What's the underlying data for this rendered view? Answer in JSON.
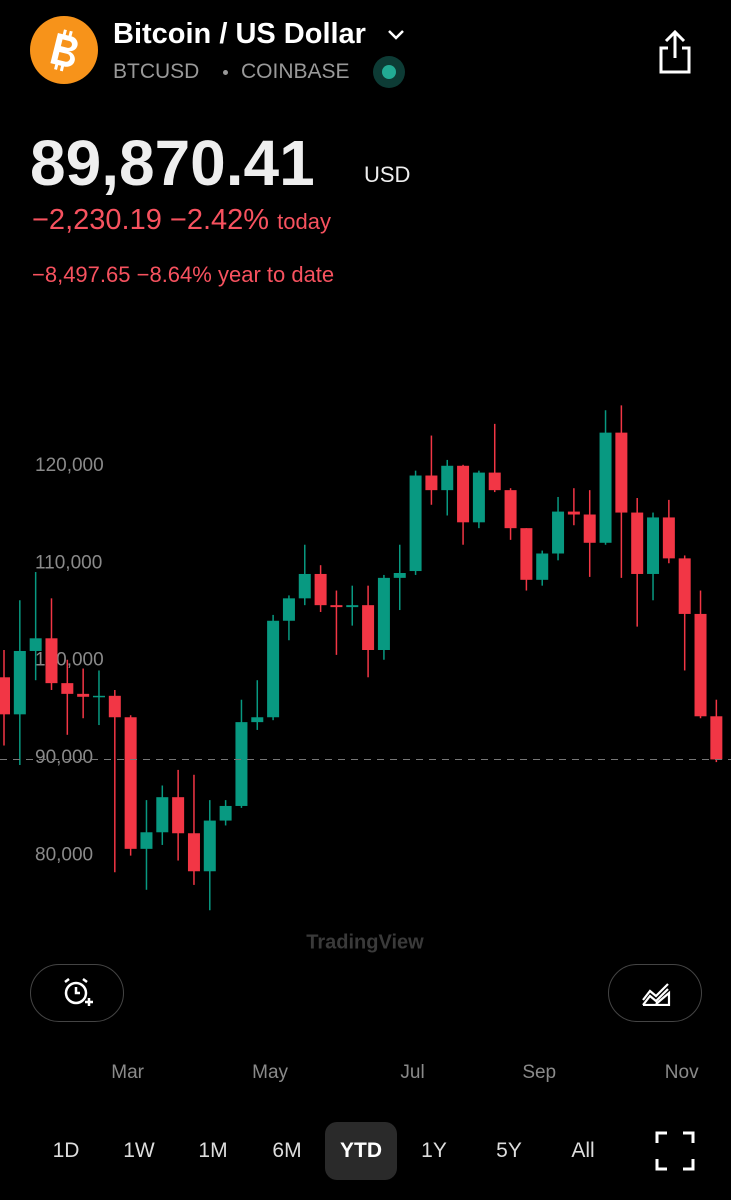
{
  "header": {
    "title": "Bitcoin / US Dollar",
    "symbol": "BTCUSD",
    "exchange": "COINBASE"
  },
  "price": {
    "value": "89,870.41",
    "currency": "USD",
    "today": {
      "change": "−2,230.19",
      "percent": "−2.42%",
      "label": "today"
    },
    "ytd": {
      "change": "−8,497.65",
      "percent": "−8.64%",
      "label": "year to date"
    }
  },
  "chart_data": {
    "type": "candlestick",
    "watermark": "TradingView",
    "categories": [
      null,
      null,
      null,
      null,
      null,
      null,
      null,
      null,
      "Mar",
      null,
      null,
      null,
      null,
      null,
      null,
      null,
      null,
      "May",
      null,
      null,
      null,
      null,
      null,
      null,
      null,
      null,
      "Jul",
      null,
      null,
      null,
      null,
      null,
      null,
      null,
      "Sep",
      null,
      null,
      null,
      null,
      null,
      null,
      null,
      null,
      "Nov",
      null,
      null
    ],
    "open": [
      98300,
      94500,
      101000,
      102300,
      97700,
      96600,
      96300,
      96400,
      94200,
      80700,
      82400,
      86000,
      82300,
      78400,
      83600,
      85100,
      93700,
      94200,
      104100,
      106400,
      108900,
      105700,
      105500,
      105700,
      101100,
      108500,
      109200,
      119000,
      117500,
      120000,
      114200,
      119300,
      117500,
      113600,
      108300,
      111000,
      115300,
      115000,
      112100,
      123400,
      115200,
      108900,
      114700,
      110500,
      104800,
      94300
    ],
    "high": [
      101100,
      106200,
      109100,
      106400,
      100100,
      99200,
      99000,
      97000,
      94400,
      85700,
      87200,
      88800,
      88300,
      85700,
      85700,
      96000,
      98000,
      104700,
      106700,
      111900,
      109800,
      107200,
      107700,
      107700,
      108800,
      111900,
      119500,
      123100,
      120600,
      120100,
      119500,
      124300,
      117700,
      113600,
      111300,
      116800,
      117700,
      117500,
      125700,
      126200,
      116700,
      115200,
      116500,
      110800,
      107200,
      96000
    ],
    "low": [
      91300,
      89300,
      98000,
      97000,
      92400,
      94100,
      93400,
      78300,
      80000,
      76500,
      81100,
      79500,
      77000,
      74400,
      83100,
      84900,
      92900,
      93900,
      102100,
      105700,
      105000,
      100600,
      103600,
      98300,
      100100,
      105200,
      108800,
      116000,
      114900,
      111900,
      113600,
      117300,
      112400,
      107200,
      107700,
      110300,
      113900,
      108600,
      111900,
      108500,
      103500,
      106200,
      110000,
      99000,
      94100,
      89600
    ],
    "close": [
      94500,
      101000,
      102300,
      97700,
      96600,
      96300,
      96400,
      94200,
      80700,
      82400,
      86000,
      82300,
      78400,
      83600,
      85100,
      93700,
      94200,
      104100,
      106400,
      108900,
      105700,
      105500,
      105700,
      101100,
      108500,
      109000,
      119000,
      117500,
      120000,
      114200,
      119300,
      117500,
      113600,
      108300,
      111000,
      115300,
      115000,
      112100,
      123400,
      115200,
      108900,
      114700,
      110500,
      104800,
      94300,
      89870.41
    ],
    "up_color": "#089981",
    "down_color": "#f23645",
    "ylim": [
      73400,
      128800
    ],
    "yticks": [
      {
        "value": 80000,
        "label": "80,000"
      },
      {
        "value": 90000,
        "label": "90,000"
      },
      {
        "value": 100000,
        "label": "100,000"
      },
      {
        "value": 110000,
        "label": "110,000"
      },
      {
        "value": 120000,
        "label": "120,000"
      }
    ]
  },
  "ranges": [
    "1D",
    "1W",
    "1M",
    "6M",
    "YTD",
    "1Y",
    "5Y",
    "All"
  ],
  "selected_range_index": 4
}
